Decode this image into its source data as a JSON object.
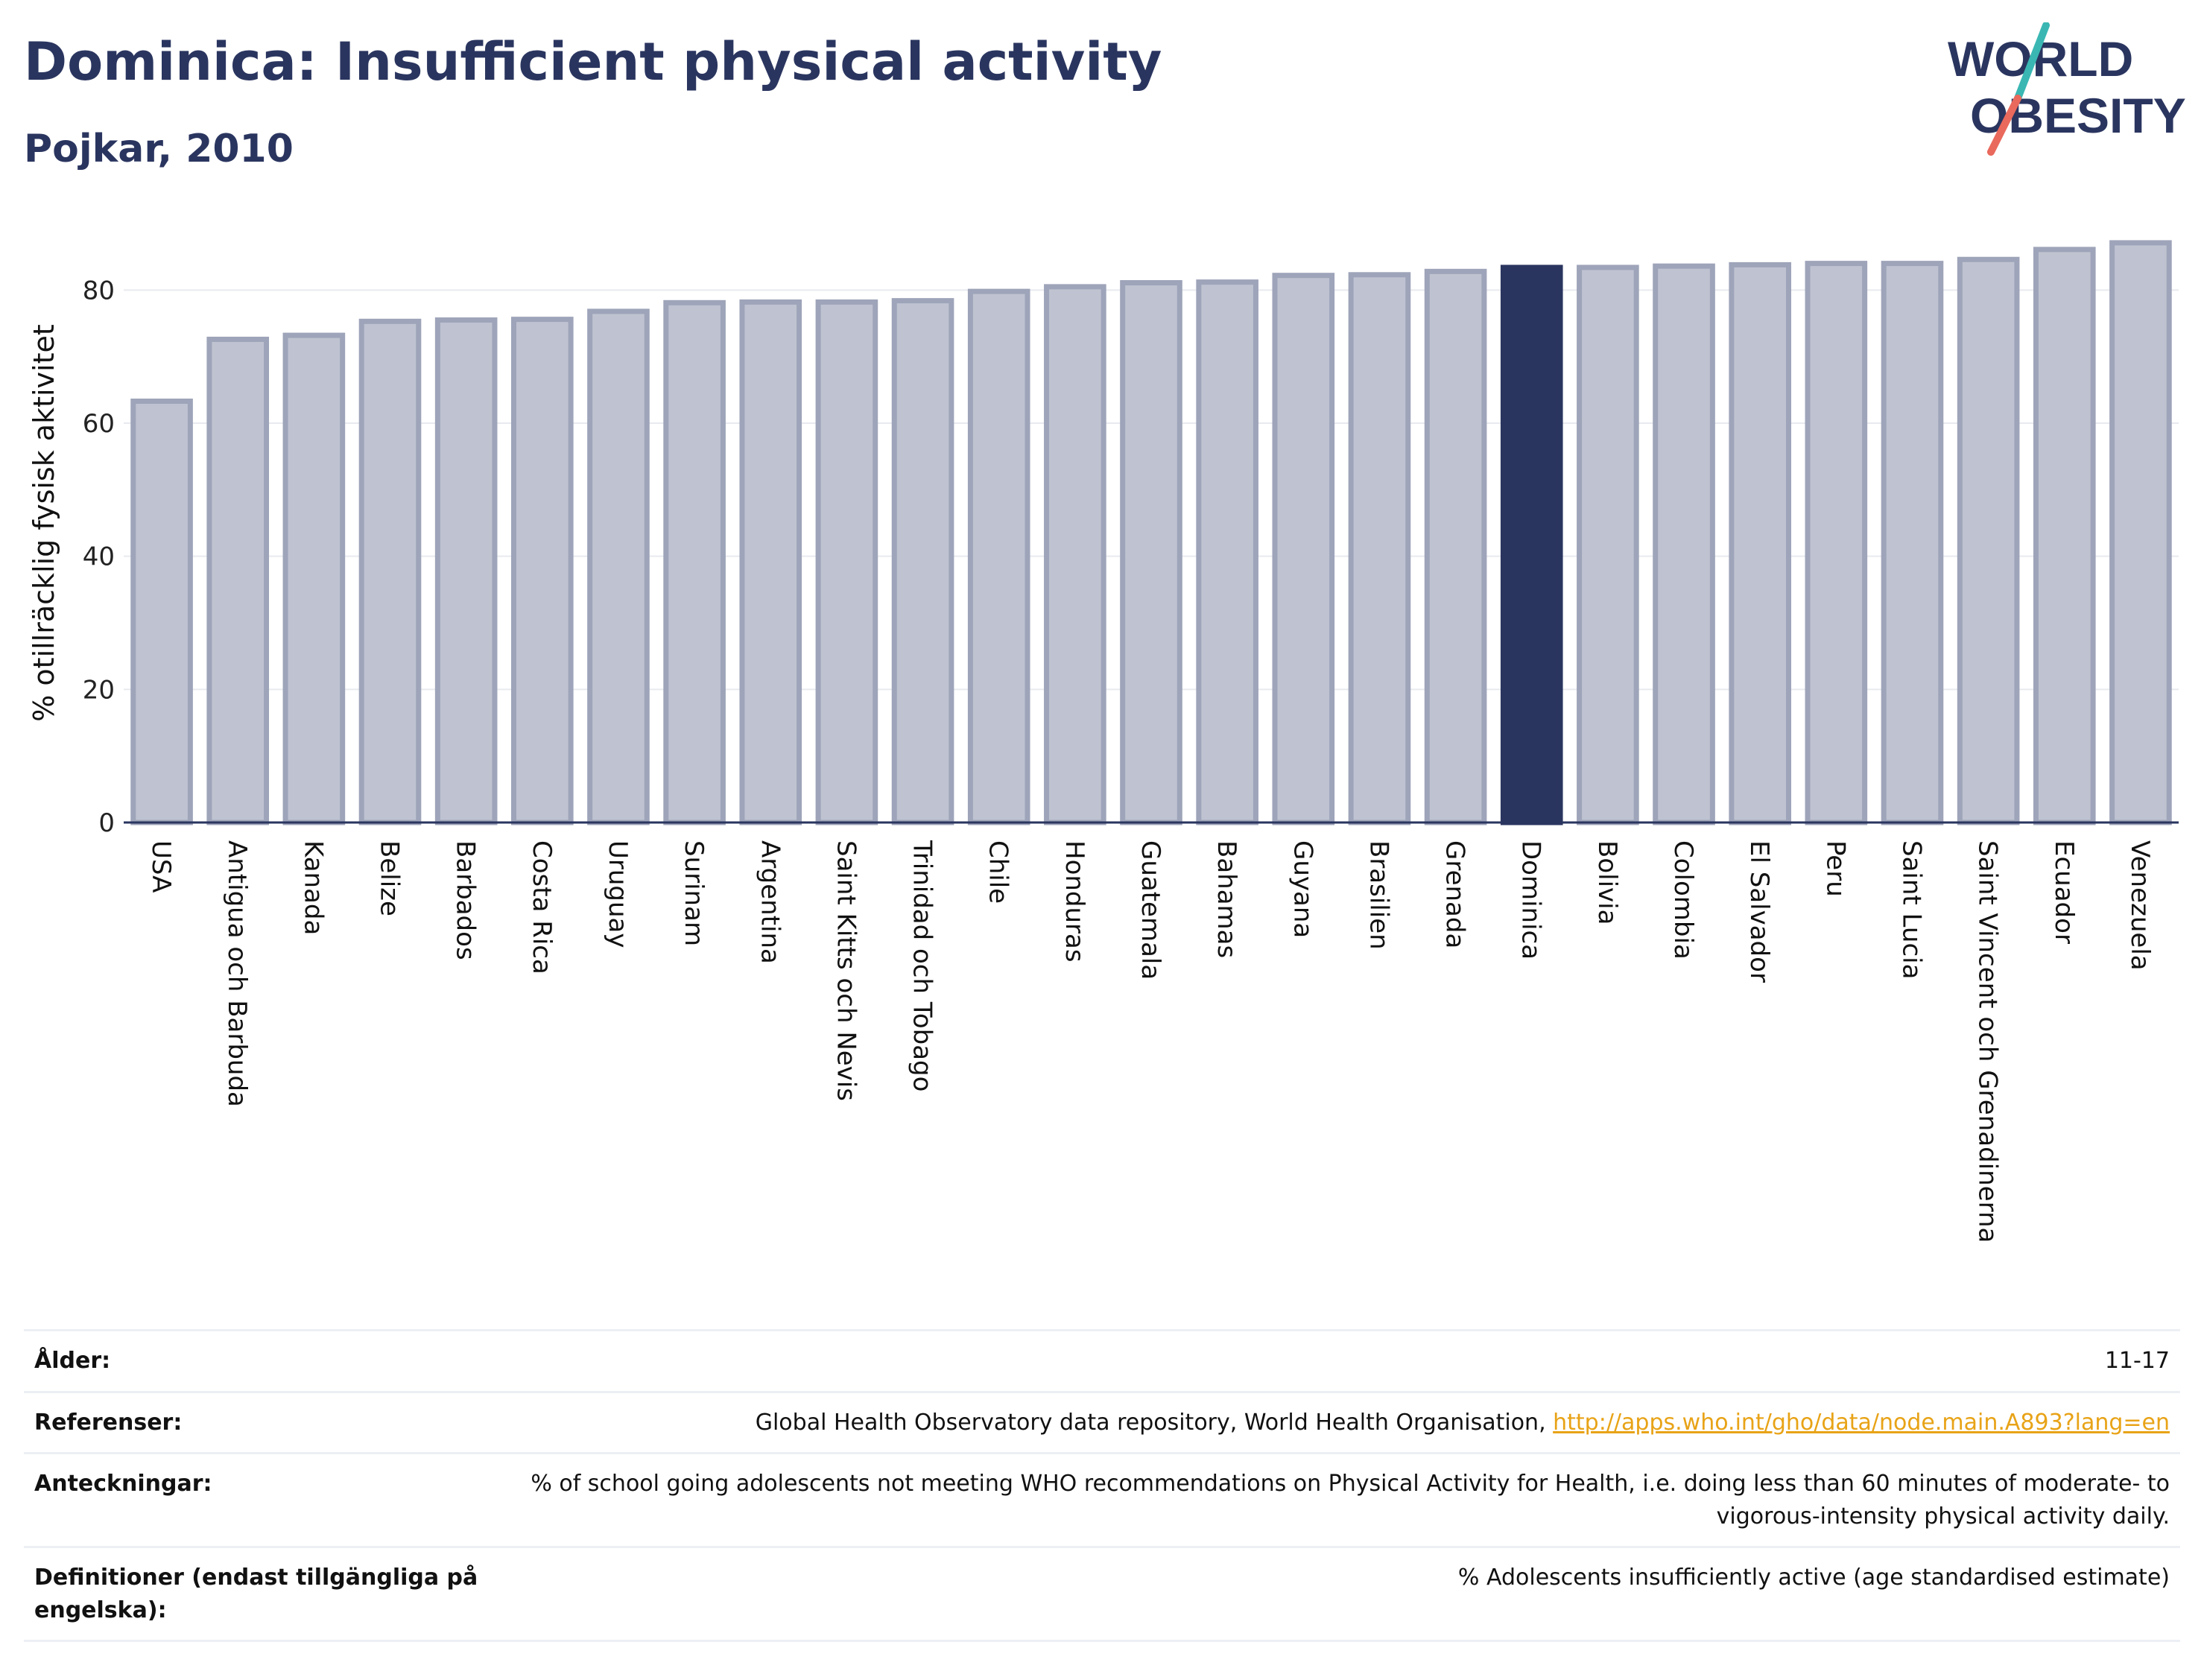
{
  "header": {
    "title": "Dominica: Insufficient physical activity",
    "subtitle": "Pojkar, 2010"
  },
  "logo": {
    "line1": "WORLD",
    "line2": "OBESITY"
  },
  "colors": {
    "highlight": "#2a355f",
    "bar_fill": "#bfc3d1",
    "bar_stroke": "#9ea4b9",
    "text": "#2a355f",
    "link": "#e8a317",
    "logo_teal": "#3ab7b3",
    "logo_coral": "#e9695c"
  },
  "chart_data": {
    "type": "bar",
    "title": "Dominica: Insufficient physical activity",
    "subtitle": "Pojkar, 2010",
    "xlabel": "",
    "ylabel": "% otillräcklig fysisk aktivitet",
    "ylim": [
      0,
      90
    ],
    "yticks": [
      0,
      20,
      40,
      60,
      80
    ],
    "grid": true,
    "highlight": "Dominica",
    "categories": [
      "USA",
      "Antigua och Barbuda",
      "Kanada",
      "Belize",
      "Barbados",
      "Costa Rica",
      "Uruguay",
      "Surinam",
      "Argentina",
      "Saint Kitts och Nevis",
      "Trinidad och Tobago",
      "Chile",
      "Honduras",
      "Guatemala",
      "Bahamas",
      "Guyana",
      "Brasilien",
      "Grenada",
      "Dominica",
      "Bolivia",
      "Colombia",
      "El Salvador",
      "Peru",
      "Saint Lucia",
      "Saint Vincent och Grenadinerna",
      "Ecuador",
      "Venezuela"
    ],
    "values": [
      63.3,
      72.6,
      73.2,
      75.3,
      75.5,
      75.6,
      76.8,
      78.1,
      78.2,
      78.2,
      78.4,
      79.8,
      80.5,
      81.1,
      81.2,
      82.2,
      82.3,
      82.8,
      83.4,
      83.4,
      83.6,
      83.8,
      84.0,
      84.0,
      84.6,
      86.1,
      87.1
    ]
  },
  "info": {
    "age_label": "Ålder:",
    "age_value": "11-17",
    "refs_label": "Referenser:",
    "refs_text": "Global Health Observatory data repository, World Health Organisation, ",
    "refs_link": "http://apps.who.int/gho/data/node.main.A893?lang=en",
    "notes_label": "Anteckningar:",
    "notes_value": "% of school going adolescents not meeting WHO recommendations on Physical Activity for Health, i.e. doing less than 60 minutes of moderate- to vigorous-intensity physical activity daily.",
    "defs_label": "Definitioner (endast tillgängliga på engelska):",
    "defs_value": "% Adolescents insufficiently active (age standardised estimate)"
  }
}
